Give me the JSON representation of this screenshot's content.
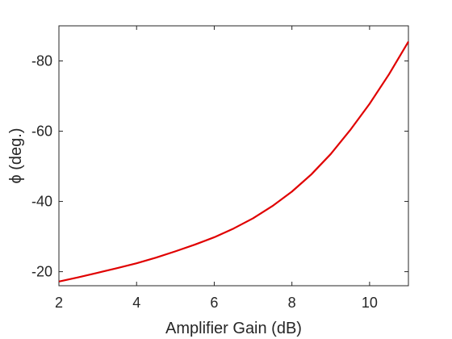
{
  "chart_data": {
    "type": "line",
    "title": "",
    "xlabel": "Amplifier Gain (dB)",
    "ylabel": "ϕ (deg.)",
    "xlim": [
      2,
      11
    ],
    "ylim": [
      -16,
      -90
    ],
    "y_axis_reversed": true,
    "grid": false,
    "box": true,
    "x_ticks": [
      2,
      4,
      6,
      8,
      10
    ],
    "x_tick_labels": [
      "2",
      "4",
      "6",
      "8",
      "10"
    ],
    "y_ticks": [
      -20,
      -40,
      -60,
      -80
    ],
    "y_tick_labels": [
      "-20",
      "-40",
      "-60",
      "-80"
    ],
    "series": [
      {
        "color": "#e00000",
        "x": [
          2,
          2.5,
          3,
          3.5,
          4,
          4.5,
          5,
          5.5,
          6,
          6.5,
          7,
          7.5,
          8,
          8.5,
          9,
          9.5,
          10,
          10.5,
          11
        ],
        "y": [
          -17.2,
          -18.4,
          -19.7,
          -21.0,
          -22.4,
          -24.0,
          -25.8,
          -27.7,
          -29.8,
          -32.3,
          -35.2,
          -38.7,
          -42.8,
          -47.7,
          -53.5,
          -60.3,
          -67.8,
          -76.2,
          -85.5
        ]
      }
    ]
  }
}
